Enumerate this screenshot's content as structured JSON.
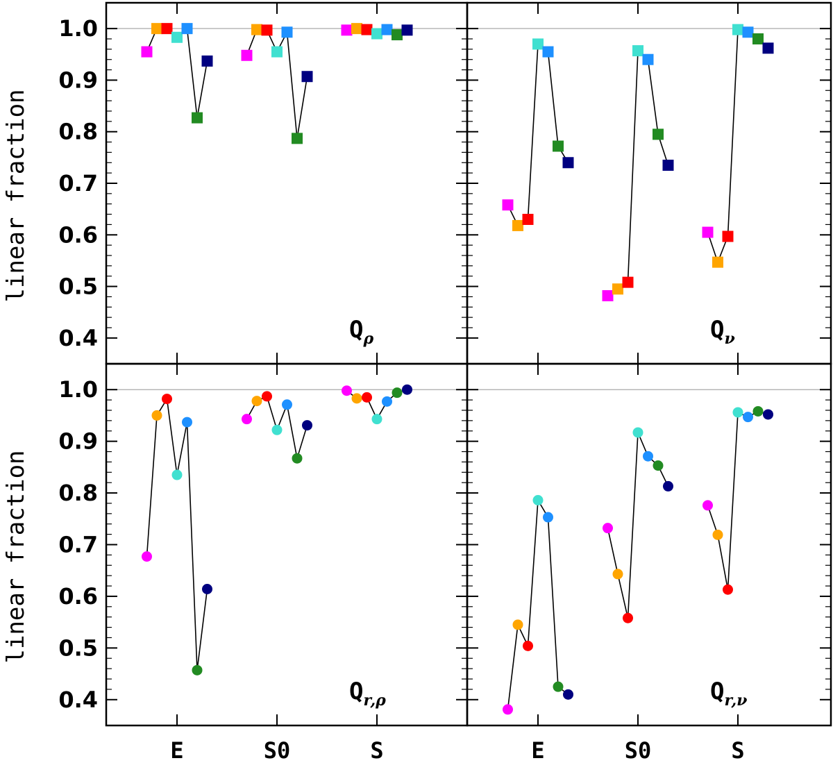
{
  "chart_data": {
    "type": "scatter",
    "ylabel": "linear fraction",
    "ylim": [
      0.35,
      1.05
    ],
    "yticks": [
      "0.4",
      "0.5",
      "0.6",
      "0.7",
      "0.8",
      "0.9",
      "1.0"
    ],
    "reference_line": 1.0,
    "categories": [
      "E",
      "S0",
      "S"
    ],
    "series_colors": [
      "#ff00ff",
      "#ffa500",
      "#ff0000",
      "#40e0d0",
      "#1e90ff",
      "#228b22",
      "#000080"
    ],
    "panels": [
      {
        "id": "q-rho",
        "label_main": "Q",
        "label_sub": "ρ",
        "marker": "square",
        "groups": [
          [
            0.955,
            1.0,
            1.0,
            0.983,
            1.0,
            0.827,
            0.937
          ],
          [
            0.948,
            0.998,
            0.997,
            0.955,
            0.993,
            0.787,
            0.907
          ],
          [
            0.997,
            1.0,
            0.998,
            0.99,
            0.998,
            0.988,
            0.997
          ]
        ]
      },
      {
        "id": "q-nu",
        "label_main": "Q",
        "label_sub": "ν",
        "marker": "square",
        "groups": [
          [
            0.658,
            0.618,
            0.63,
            0.97,
            0.955,
            0.772,
            0.74
          ],
          [
            0.482,
            0.495,
            0.508,
            0.957,
            0.94,
            0.795,
            0.735
          ],
          [
            0.605,
            0.547,
            0.597,
            0.998,
            0.993,
            0.98,
            0.962
          ]
        ]
      },
      {
        "id": "q-r-rho",
        "label_main": "Q",
        "label_sub": "r,ρ",
        "marker": "circle",
        "groups": [
          [
            0.677,
            0.95,
            0.982,
            0.835,
            0.937,
            0.457,
            0.614
          ],
          [
            0.943,
            0.978,
            0.987,
            0.922,
            0.971,
            0.867,
            0.931
          ],
          [
            0.998,
            0.983,
            0.985,
            0.943,
            0.977,
            0.994,
            1.0
          ]
        ]
      },
      {
        "id": "q-r-nu",
        "label_main": "Q",
        "label_sub": "r,ν",
        "marker": "circle",
        "groups": [
          [
            0.381,
            0.545,
            0.504,
            0.786,
            0.753,
            0.425,
            0.41
          ],
          [
            0.732,
            0.643,
            0.558,
            0.917,
            0.871,
            0.853,
            0.813
          ],
          [
            0.776,
            0.719,
            0.613,
            0.956,
            0.947,
            0.958,
            0.952
          ]
        ]
      }
    ]
  }
}
